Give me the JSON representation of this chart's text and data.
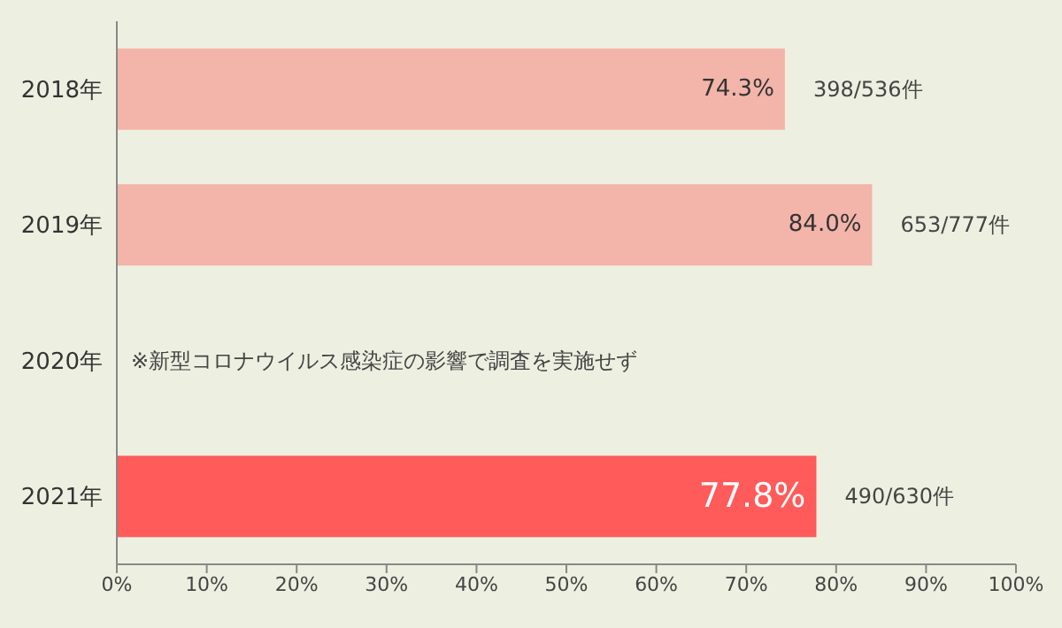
{
  "chart_data": {
    "type": "bar",
    "orientation": "horizontal",
    "categories": [
      "2018年",
      "2019年",
      "2020年",
      "2021年"
    ],
    "values": [
      74.3,
      84.0,
      null,
      77.8
    ],
    "colors": [
      "#f3b4aa",
      "#f3b4aa",
      "#f3b4aa",
      "#ff5b5b"
    ],
    "value_labels": [
      "74.3%",
      "84.0%",
      null,
      "77.8%"
    ],
    "xlim": [
      0,
      100
    ],
    "xticks": [
      {
        "value": 0,
        "label": "0%"
      },
      {
        "value": 10,
        "label": "10%"
      },
      {
        "value": 20,
        "label": "20%"
      },
      {
        "value": 30,
        "label": "30%"
      },
      {
        "value": 40,
        "label": "40%"
      },
      {
        "value": 50,
        "label": "50%"
      },
      {
        "value": 60,
        "label": "60%"
      },
      {
        "value": 70,
        "label": "70%"
      },
      {
        "value": 80,
        "label": "80%"
      },
      {
        "value": 90,
        "label": "90%"
      },
      {
        "value": 100,
        "label": "100%"
      }
    ],
    "annotations": [
      {
        "text": "398/536件",
        "x": 74.3,
        "y": "2018年"
      },
      {
        "text": "653/777件",
        "x": 84.0,
        "y": "2019年"
      },
      "※新型コロナウイルス感染症の影響で調査を実施せず",
      {
        "text": "490/630件",
        "x": 77.8,
        "y": "2021年"
      }
    ],
    "grid": false,
    "legend": false
  }
}
